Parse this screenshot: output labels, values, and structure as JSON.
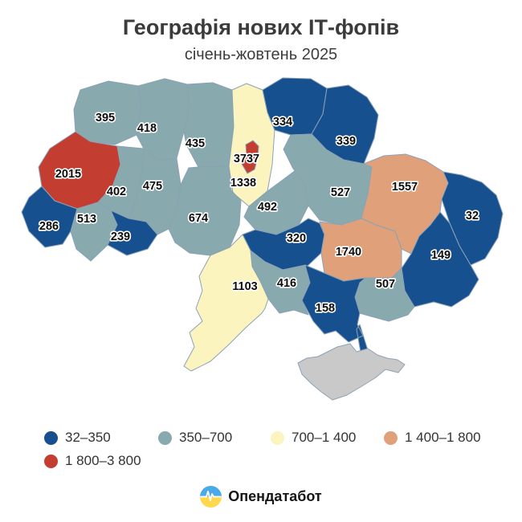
{
  "title": "Географія нових ІТ-фопів",
  "subtitle": "січень-жовтень 2025",
  "colors": {
    "blue": "#17508f",
    "teal": "#88a9ad",
    "yellow": "#fbf4bf",
    "salmon": "#e0a17a",
    "red": "#c33d31",
    "gray": "#c9c9c9"
  },
  "legend": [
    {
      "label": "32–350",
      "color_key": "blue"
    },
    {
      "label": "350–700",
      "color_key": "teal"
    },
    {
      "label": "700–1 400",
      "color_key": "yellow"
    },
    {
      "label": "1 400–1 800",
      "color_key": "salmon"
    },
    {
      "label": "1 800–3 800",
      "color_key": "red"
    }
  ],
  "footer": {
    "brand": "Опендатабот"
  },
  "chart_data": {
    "type": "choropleth",
    "title": "Географія нових ІТ-фопів",
    "subtitle": "січень-жовтень 2025",
    "legend_buckets": [
      "32–350",
      "350–700",
      "700–1 400",
      "1 400–1 800",
      "1 800–3 800"
    ],
    "regions": [
      {
        "id": "volyn",
        "value": 395,
        "color_key": "teal"
      },
      {
        "id": "rivne",
        "value": 418,
        "color_key": "teal"
      },
      {
        "id": "zhytomyr",
        "value": 435,
        "color_key": "teal"
      },
      {
        "id": "kyiv_oblast",
        "value": 1338,
        "color_key": "yellow"
      },
      {
        "id": "kyiv_city",
        "value": 3737,
        "color_key": "red"
      },
      {
        "id": "chernihiv",
        "value": 334,
        "color_key": "blue"
      },
      {
        "id": "sumy",
        "value": 339,
        "color_key": "blue"
      },
      {
        "id": "lviv",
        "value": 2015,
        "color_key": "red"
      },
      {
        "id": "ternopil",
        "value": 402,
        "color_key": "teal"
      },
      {
        "id": "khmelnytskyi",
        "value": 475,
        "color_key": "teal"
      },
      {
        "id": "vinnytsia",
        "value": 674,
        "color_key": "teal"
      },
      {
        "id": "cherkasy",
        "value": 492,
        "color_key": "teal"
      },
      {
        "id": "poltava",
        "value": 527,
        "color_key": "teal"
      },
      {
        "id": "kharkiv",
        "value": 1557,
        "color_key": "salmon"
      },
      {
        "id": "luhansk",
        "value": 32,
        "color_key": "blue"
      },
      {
        "id": "zakarpattia",
        "value": 286,
        "color_key": "blue"
      },
      {
        "id": "ivano_frankivsk",
        "value": 513,
        "color_key": "teal"
      },
      {
        "id": "chernivtsi",
        "value": 239,
        "color_key": "blue"
      },
      {
        "id": "kirovohrad",
        "value": 320,
        "color_key": "blue"
      },
      {
        "id": "dnipro",
        "value": 1740,
        "color_key": "salmon"
      },
      {
        "id": "donetsk",
        "value": 149,
        "color_key": "blue"
      },
      {
        "id": "zaporizhzhia",
        "value": 507,
        "color_key": "teal"
      },
      {
        "id": "mykolaiv",
        "value": 416,
        "color_key": "teal"
      },
      {
        "id": "kherson",
        "value": 158,
        "color_key": "blue"
      },
      {
        "id": "odesa",
        "value": 1103,
        "color_key": "yellow"
      },
      {
        "id": "crimea",
        "value": null,
        "color_key": "gray"
      }
    ]
  }
}
